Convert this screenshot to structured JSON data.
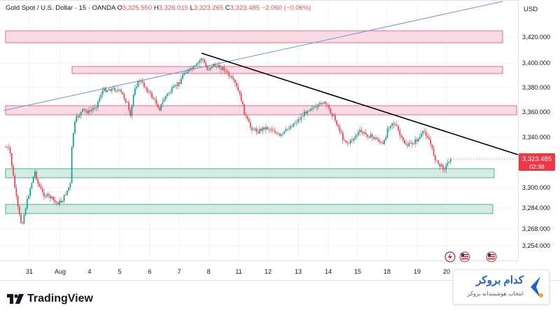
{
  "legend": {
    "symbol": "Gold Spot / U.S. Dollar · 15 · OANDA",
    "o_label": "O",
    "o_value": "3,325.550",
    "h_label": "H",
    "h_value": "3,326.015",
    "l_label": "L",
    "l_value": "3,323.265",
    "c_label": "C",
    "c_value": "3,323.485",
    "change": "−2.060 (−0.06%)"
  },
  "currency": "USD",
  "price_axis": {
    "labels": [
      "3,420.000",
      "3,400.000",
      "3,380.000",
      "3,360.000",
      "3,340.000",
      "3,300.000",
      "3,284.000",
      "3,268.000",
      "3,254.000"
    ],
    "current_price": "3,323.485",
    "countdown": "02:38"
  },
  "time_axis": [
    "31",
    "Aug",
    "4",
    "5",
    "6",
    "7",
    "8",
    "11",
    "12",
    "13",
    "14",
    "15",
    "18",
    "19",
    "20"
  ],
  "brand": {
    "name": "کدام بروکر",
    "tagline": "انتخاب هوشمندانه بروکر"
  },
  "footer": {
    "logo_text": "TradingView"
  },
  "colors": {
    "up": "#089981",
    "down": "#f23645",
    "resistance_zone": "#f7c6d1",
    "support_zone": "#cfe9df",
    "trendline": "#000000",
    "channel_line": "#5b8def"
  },
  "icons": [
    "tradingview-logo-icon",
    "flash-icon",
    "us-flag-icon"
  ]
}
